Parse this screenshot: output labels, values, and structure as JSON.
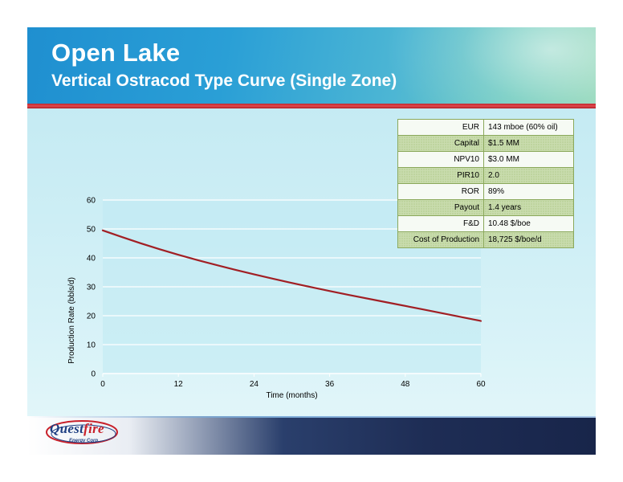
{
  "slide": {
    "title": "Open Lake",
    "subtitle": "Vertical Ostracod Type Curve (Single Zone)"
  },
  "metrics": [
    {
      "label": "EUR",
      "value": "143 mboe (60% oil)"
    },
    {
      "label": "Capital",
      "value": "$1.5 MM"
    },
    {
      "label": "NPV10",
      "value": "$3.0 MM"
    },
    {
      "label": "PIR10",
      "value": "2.0"
    },
    {
      "label": "ROR",
      "value": "89%"
    },
    {
      "label": "Payout",
      "value": "1.4 years"
    },
    {
      "label": "F&D",
      "value": "10.48 $/boe"
    },
    {
      "label": "Cost of Production",
      "value": "18,725 $/boe/d"
    }
  ],
  "chart_data": {
    "type": "line",
    "title": "",
    "xlabel": "Time (months)",
    "ylabel": "Production Rate (bbls/d)",
    "xlim": [
      0,
      60
    ],
    "ylim": [
      0,
      60
    ],
    "xticks": [
      0,
      12,
      24,
      36,
      48,
      60
    ],
    "yticks": [
      0,
      10,
      20,
      30,
      40,
      50,
      60
    ],
    "grid": "horizontal",
    "line_color": "#a11f24",
    "series": [
      {
        "x": [
          0,
          6,
          12,
          18,
          24,
          30,
          36,
          42,
          48,
          54,
          60
        ],
        "y": [
          49.5,
          45,
          41,
          37.5,
          34.3,
          31.3,
          28.5,
          25.9,
          23.4,
          20.8,
          18.2
        ]
      }
    ]
  },
  "logo": {
    "brand_part1": "Quest",
    "brand_part2": "fire",
    "sub": "Energy Corp."
  },
  "colors": {
    "header_blue": "#1f8fd0",
    "accent_red": "#c0262c",
    "footer_navy": "#1e2d55"
  }
}
